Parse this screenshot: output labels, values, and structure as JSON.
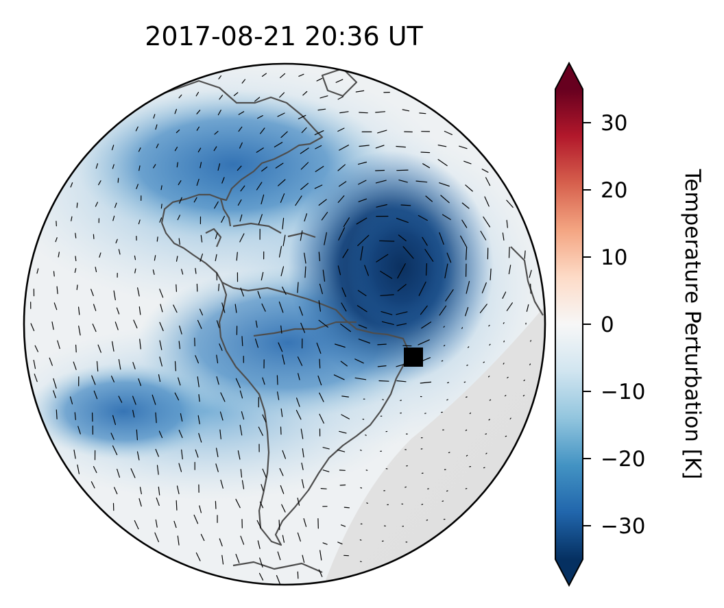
{
  "title": "2017-08-21  20:36 UT",
  "colorbar": {
    "label": "Temperature Perturbation [K]",
    "min": -35,
    "max": 35,
    "extend": "both",
    "colormap": "RdBu_r",
    "ticks": [
      30,
      20,
      10,
      0,
      -10,
      -20,
      -30
    ],
    "tick_labels": [
      "30",
      "20",
      "10",
      "0",
      "−10",
      "−20",
      "−30"
    ]
  },
  "map": {
    "projection": "orthographic",
    "view_center": "tropical Atlantic",
    "coastlines_color": "#4d4d4d",
    "night_shading": "south-east limb (light gray)",
    "wind_arrows": "short black line segments",
    "marker": {
      "shape": "square",
      "color": "#000000",
      "location": "off north-east Brazil"
    }
  },
  "colors": {
    "strong_cold": "#0b305f",
    "cold": "#2a6db0",
    "cool": "#9ecae1",
    "neutral": "#f3f3f3",
    "night": "#e0e0e0"
  }
}
